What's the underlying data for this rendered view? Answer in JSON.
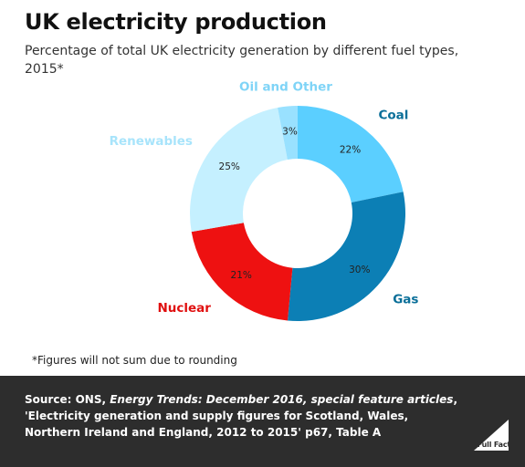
{
  "title": "UK electricity production",
  "subtitle": "Percentage of total UK electricity generation by different fuel types, 2015*",
  "chart_data": {
    "type": "pie",
    "title": "UK electricity production",
    "subtitle": "Percentage of total UK electricity generation by different fuel types, 2015*",
    "slices": [
      {
        "name": "Coal",
        "value": 22,
        "label": "22%",
        "color": "#5bcfff"
      },
      {
        "name": "Gas",
        "value": 30,
        "label": "30%",
        "color": "#0c7fb5"
      },
      {
        "name": "Nuclear",
        "value": 21,
        "label": "21%",
        "color": "#ee1111"
      },
      {
        "name": "Renewables",
        "value": 25,
        "label": "25%",
        "color": "#c5f0ff"
      },
      {
        "name": "Oil and Other",
        "value": 3,
        "label": "3%",
        "color": "#99e1ff"
      }
    ],
    "label_colors": {
      "Coal": "#0a6f99",
      "Gas": "#0a6f99",
      "Nuclear": "#e01010",
      "Renewables": "#a8e4fb",
      "Oil and Other": "#7fd4f7"
    }
  },
  "footnote": "*Figures will not sum due to rounding",
  "source": {
    "label": "Source:",
    "org": "ONS,",
    "publication": "Energy Trends: December 2016, special feature articles",
    "detail": ", 'Electricity generation and supply figures for Scotland, Wales, Northern Ireland and England, 2012 to 2015' p67, Table A"
  },
  "logo": {
    "text": "Full Fact"
  }
}
